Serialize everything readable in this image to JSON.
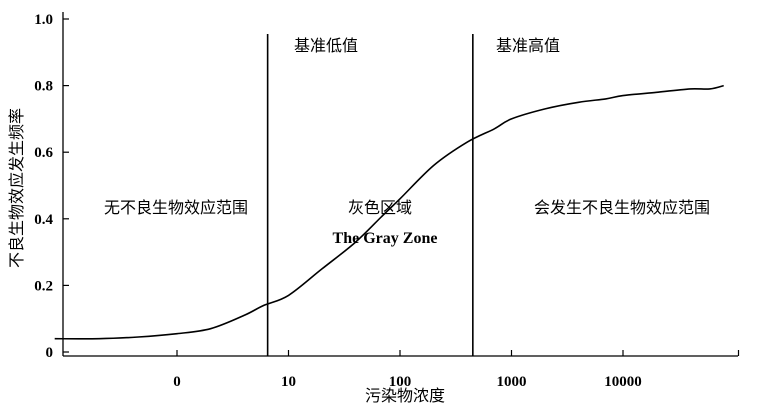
{
  "chart_data": {
    "type": "line",
    "xlabel": "污染物浓度",
    "ylabel": "不良生物效应发生频率",
    "x_scale": "log",
    "x_tick_labels": [
      "0",
      "10",
      "100",
      "1000",
      "10000"
    ],
    "y_tick_labels": [
      "0",
      "0.2",
      "0.4",
      "0.6",
      "0.8",
      "1.0"
    ],
    "ylim": [
      0,
      1.0
    ],
    "grid": false,
    "series": [
      {
        "x": [
          0.08,
          0.2,
          0.45,
          1,
          2,
          4,
          6,
          10,
          20,
          40,
          70,
          100,
          200,
          400,
          700,
          1000,
          2000,
          4000,
          7000,
          10000,
          20000,
          40000,
          60000,
          80000
        ],
        "y": [
          0.04,
          0.04,
          0.045,
          0.055,
          0.07,
          0.11,
          0.14,
          0.17,
          0.25,
          0.33,
          0.41,
          0.46,
          0.56,
          0.63,
          0.67,
          0.7,
          0.73,
          0.75,
          0.76,
          0.77,
          0.78,
          0.79,
          0.79,
          0.8
        ]
      }
    ],
    "thresholds": [
      {
        "x": 6.5,
        "label": "基准低值"
      },
      {
        "x": 450,
        "label": "基准高值"
      }
    ],
    "regions": [
      {
        "label": "无不良生物效应范围"
      },
      {
        "label": "灰色区域",
        "sublabel": "The Gray Zone"
      },
      {
        "label": "会发生不良生物效应范围"
      }
    ]
  }
}
